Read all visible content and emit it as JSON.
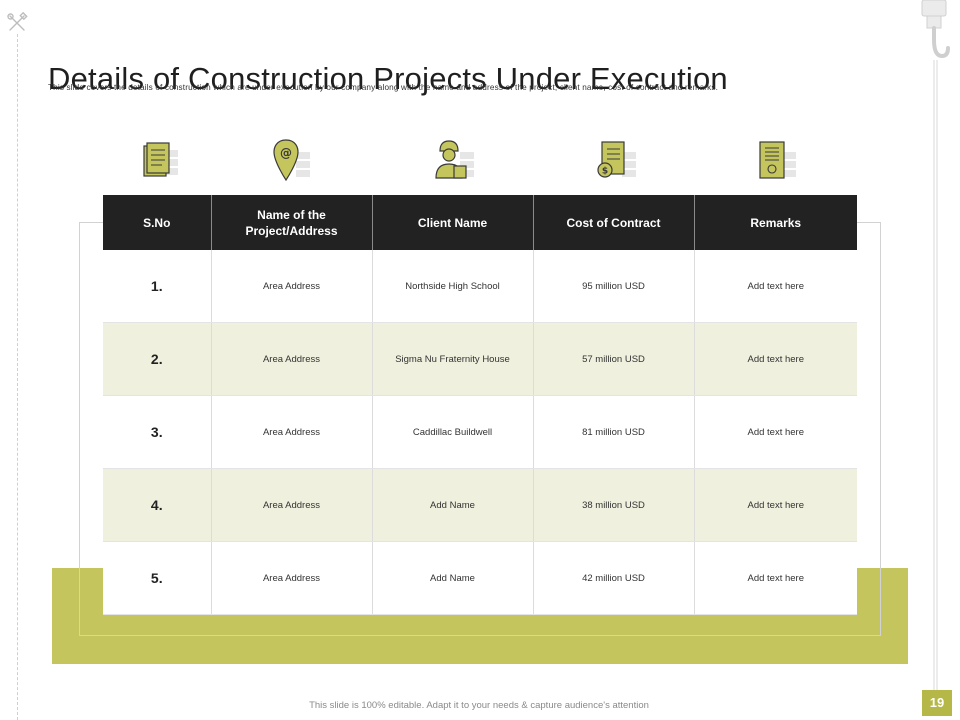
{
  "slide": {
    "title": "Details of Construction Projects Under Execution",
    "subtitle": "This slide covers the details of construction which are under execution by our company along with the name and address of the project, client name, cost of contract and remarks.",
    "footer": "This slide is 100% editable. Adapt it to your needs & capture audience's attention",
    "page_number": "19"
  },
  "colors": {
    "accent": "#c4c55c",
    "header_bg": "#222222",
    "stripe": "#eff0dd",
    "page_badge": "#b5b746"
  },
  "icons": [
    "document-icon",
    "location-email-icon",
    "worker-icon",
    "contract-money-icon",
    "certificate-icon"
  ],
  "table": {
    "headers": [
      "S.No",
      "Name of the Project/Address",
      "Client Name",
      "Cost of Contract",
      "Remarks"
    ],
    "rows": [
      [
        "1.",
        "Area Address",
        "Northside High School",
        "95 million USD",
        "Add text here"
      ],
      [
        "2.",
        "Area Address",
        "Sigma Nu Fraternity House",
        "57 million USD",
        "Add text here"
      ],
      [
        "3.",
        "Area Address",
        "Caddillac Buildwell",
        "81 million USD",
        "Add text here"
      ],
      [
        "4.",
        "Area Address",
        "Add Name",
        "38 million USD",
        "Add text here"
      ],
      [
        "5.",
        "Area Address",
        "Add Name",
        "42 million USD",
        "Add text here"
      ]
    ]
  }
}
